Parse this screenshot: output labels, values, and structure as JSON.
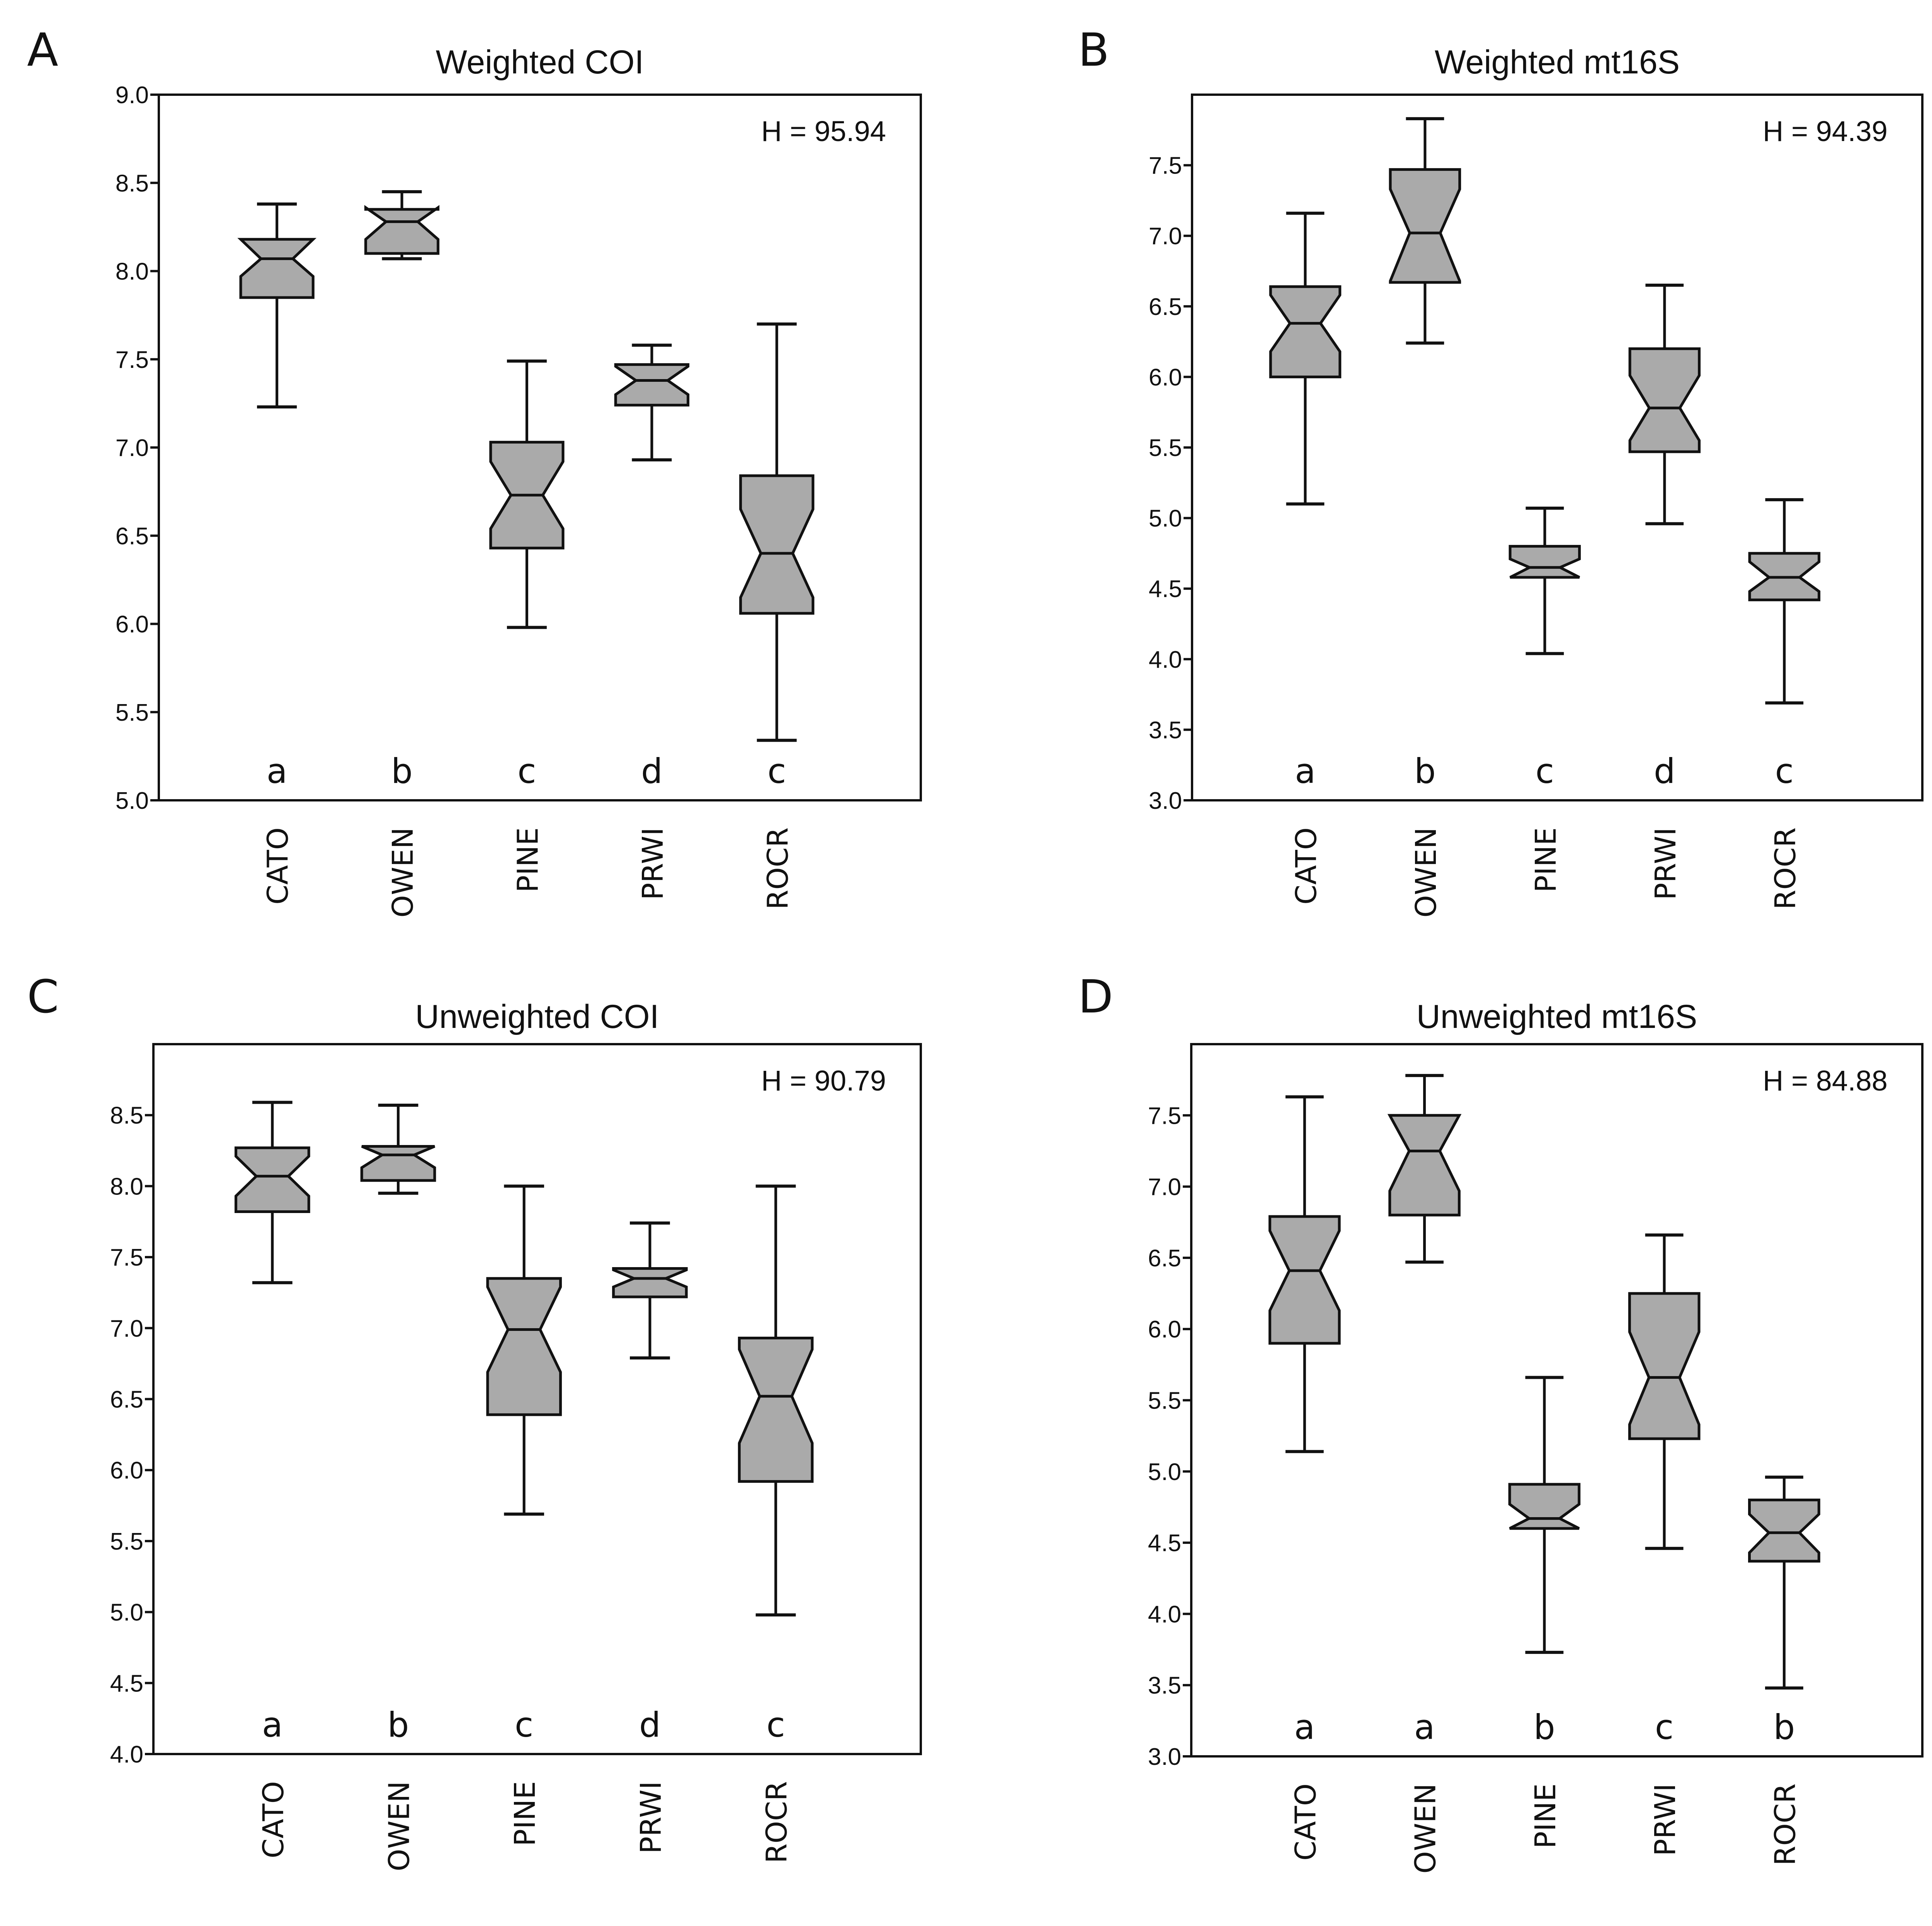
{
  "chart_data": [
    {
      "type": "box",
      "panel": "A",
      "title": "Weighted COI",
      "stat_label": "H = 95.94",
      "categories": [
        "CATO",
        "OWEN",
        "PINE",
        "PRWI",
        "ROCR"
      ],
      "significance": [
        "a",
        "b",
        "c",
        "d",
        "c"
      ],
      "ylim": [
        5.0,
        9.0
      ],
      "yticks": [
        5.0,
        5.5,
        6.0,
        6.5,
        7.0,
        7.5,
        8.0,
        8.5,
        9.0
      ],
      "ytick_labels": [
        "5.0",
        "5.5",
        "6.0",
        "6.5",
        "7.0",
        "7.5",
        "8.0",
        "8.5",
        "9.0"
      ],
      "notched": true,
      "boxes": [
        {
          "whisker_low": 7.23,
          "q1": 7.85,
          "median": 8.07,
          "q3": 8.18,
          "whisker_high": 8.38,
          "notch_low": 7.97,
          "notch_high": 8.18
        },
        {
          "whisker_low": 8.07,
          "q1": 8.1,
          "median": 8.28,
          "q3": 8.35,
          "whisker_high": 8.45,
          "notch_low": 8.18,
          "notch_high": 8.36
        },
        {
          "whisker_low": 5.98,
          "q1": 6.43,
          "median": 6.73,
          "q3": 7.03,
          "whisker_high": 7.49,
          "notch_low": 6.54,
          "notch_high": 6.92
        },
        {
          "whisker_low": 6.93,
          "q1": 7.24,
          "median": 7.38,
          "q3": 7.47,
          "whisker_high": 7.58,
          "notch_low": 7.3,
          "notch_high": 7.46
        },
        {
          "whisker_low": 5.34,
          "q1": 6.06,
          "median": 6.4,
          "q3": 6.84,
          "whisker_high": 7.7,
          "notch_low": 6.15,
          "notch_high": 6.65
        }
      ]
    },
    {
      "type": "box",
      "panel": "B",
      "title": "Weighted mt16S",
      "stat_label": "H = 94.39",
      "categories": [
        "CATO",
        "OWEN",
        "PINE",
        "PRWI",
        "ROCR"
      ],
      "significance": [
        "a",
        "b",
        "c",
        "d",
        "c"
      ],
      "ylim": [
        3.0,
        8.0
      ],
      "yticks": [
        3.0,
        3.5,
        4.0,
        4.5,
        5.0,
        5.5,
        6.0,
        6.5,
        7.0,
        7.5
      ],
      "ytick_labels": [
        "3.0",
        "3.5",
        "4.0",
        "4.5",
        "5.0",
        "5.5",
        "6.0",
        "6.5",
        "7.0",
        "7.5"
      ],
      "notched": true,
      "boxes": [
        {
          "whisker_low": 5.1,
          "q1": 6.0,
          "median": 6.38,
          "q3": 6.64,
          "whisker_high": 7.16,
          "notch_low": 6.18,
          "notch_high": 6.58
        },
        {
          "whisker_low": 6.24,
          "q1": 6.67,
          "median": 7.02,
          "q3": 7.47,
          "whisker_high": 7.83,
          "notch_low": 6.68,
          "notch_high": 7.33
        },
        {
          "whisker_low": 4.04,
          "q1": 4.58,
          "median": 4.65,
          "q3": 4.8,
          "whisker_high": 5.07,
          "notch_low": 4.58,
          "notch_high": 4.71
        },
        {
          "whisker_low": 4.96,
          "q1": 5.47,
          "median": 5.78,
          "q3": 6.2,
          "whisker_high": 6.65,
          "notch_low": 5.55,
          "notch_high": 6.01
        },
        {
          "whisker_low": 3.69,
          "q1": 4.42,
          "median": 4.58,
          "q3": 4.75,
          "whisker_high": 5.13,
          "notch_low": 4.48,
          "notch_high": 4.69
        }
      ]
    },
    {
      "type": "box",
      "panel": "C",
      "title": "Unweighted COI",
      "stat_label": "H = 90.79",
      "categories": [
        "CATO",
        "OWEN",
        "PINE",
        "PRWI",
        "ROCR"
      ],
      "significance": [
        "a",
        "b",
        "c",
        "d",
        "c"
      ],
      "ylim": [
        4.0,
        9.0
      ],
      "yticks": [
        4.0,
        4.5,
        5.0,
        5.5,
        6.0,
        6.5,
        7.0,
        7.5,
        8.0,
        8.5
      ],
      "ytick_labels": [
        "4.0",
        "4.5",
        "5.0",
        "5.5",
        "6.0",
        "6.5",
        "7.0",
        "7.5",
        "8.0",
        "8.5"
      ],
      "notched": true,
      "boxes": [
        {
          "whisker_low": 7.32,
          "q1": 7.82,
          "median": 8.07,
          "q3": 8.27,
          "whisker_high": 8.59,
          "notch_low": 7.93,
          "notch_high": 8.21
        },
        {
          "whisker_low": 7.95,
          "q1": 8.04,
          "median": 8.22,
          "q3": 8.28,
          "whisker_high": 8.57,
          "notch_low": 8.13,
          "notch_high": 8.28
        },
        {
          "whisker_low": 5.69,
          "q1": 6.39,
          "median": 6.99,
          "q3": 7.35,
          "whisker_high": 8.0,
          "notch_low": 6.69,
          "notch_high": 7.29
        },
        {
          "whisker_low": 6.79,
          "q1": 7.22,
          "median": 7.35,
          "q3": 7.42,
          "whisker_high": 7.74,
          "notch_low": 7.29,
          "notch_high": 7.41
        },
        {
          "whisker_low": 4.98,
          "q1": 5.92,
          "median": 6.52,
          "q3": 6.93,
          "whisker_high": 8.0,
          "notch_low": 6.19,
          "notch_high": 6.85
        }
      ]
    },
    {
      "type": "box",
      "panel": "D",
      "title": "Unweighted mt16S",
      "stat_label": "H = 84.88",
      "categories": [
        "CATO",
        "OWEN",
        "PINE",
        "PRWI",
        "ROCR"
      ],
      "significance": [
        "a",
        "a",
        "b",
        "c",
        "b"
      ],
      "ylim": [
        3.0,
        8.0
      ],
      "yticks": [
        3.0,
        3.5,
        4.0,
        4.5,
        5.0,
        5.5,
        6.0,
        6.5,
        7.0,
        7.5
      ],
      "ytick_labels": [
        "3.0",
        "3.5",
        "4.0",
        "4.5",
        "5.0",
        "5.5",
        "6.0",
        "6.5",
        "7.0",
        "7.5"
      ],
      "notched": true,
      "boxes": [
        {
          "whisker_low": 5.14,
          "q1": 5.9,
          "median": 6.41,
          "q3": 6.79,
          "whisker_high": 7.63,
          "notch_low": 6.13,
          "notch_high": 6.69
        },
        {
          "whisker_low": 6.47,
          "q1": 6.8,
          "median": 7.25,
          "q3": 7.5,
          "whisker_high": 7.78,
          "notch_low": 6.97,
          "notch_high": 7.5
        },
        {
          "whisker_low": 3.73,
          "q1": 4.6,
          "median": 4.67,
          "q3": 4.91,
          "whisker_high": 5.66,
          "notch_low": 4.6,
          "notch_high": 4.77
        },
        {
          "whisker_low": 4.46,
          "q1": 5.23,
          "median": 5.66,
          "q3": 6.25,
          "whisker_high": 6.66,
          "notch_low": 5.33,
          "notch_high": 5.98
        },
        {
          "whisker_low": 3.48,
          "q1": 4.37,
          "median": 4.57,
          "q3": 4.8,
          "whisker_high": 4.96,
          "notch_low": 4.43,
          "notch_high": 4.7
        }
      ]
    }
  ],
  "colors": {
    "box_fill": "#aaaaaa",
    "stroke": "#111111"
  }
}
